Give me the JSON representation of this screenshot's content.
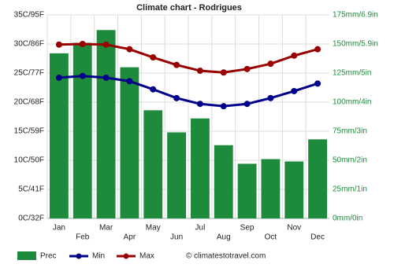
{
  "chart_data": {
    "type": "bar-line",
    "title": "Climate chart - Rodrigues",
    "categories": [
      "Jan",
      "Feb",
      "Mar",
      "Apr",
      "May",
      "Jun",
      "Jul",
      "Aug",
      "Sep",
      "Oct",
      "Nov",
      "Dec"
    ],
    "series": [
      {
        "name": "Prec",
        "color": "#1e8a3c",
        "axis": "y2",
        "kind": "bar",
        "values": [
          142,
          151,
          162,
          130,
          93,
          74,
          86,
          63,
          47,
          51,
          49,
          68
        ]
      },
      {
        "name": "Min",
        "color": "#00008b",
        "kind": "line",
        "values": [
          24.2,
          24.5,
          24.2,
          23.6,
          22.2,
          20.7,
          19.7,
          19.3,
          19.7,
          20.7,
          21.9,
          23.2
        ]
      },
      {
        "name": "Max",
        "color": "#990000",
        "kind": "line",
        "values": [
          29.9,
          30.0,
          29.9,
          29.1,
          27.7,
          26.4,
          25.4,
          25.1,
          25.7,
          26.6,
          28.0,
          29.1
        ]
      }
    ],
    "ylim": [
      0,
      35
    ],
    "yticks": [
      {
        "value": 0,
        "label": "0C/32F"
      },
      {
        "value": 5,
        "label": "5C/41F"
      },
      {
        "value": 10,
        "label": "10C/50F"
      },
      {
        "value": 15,
        "label": "15C/59F"
      },
      {
        "value": 20,
        "label": "20C/68F"
      },
      {
        "value": 25,
        "label": "25C/77F"
      },
      {
        "value": 30,
        "label": "30C/86F"
      },
      {
        "value": 35,
        "label": "35C/95F"
      }
    ],
    "y2lim": [
      0,
      175
    ],
    "y2ticks": [
      {
        "value": 0,
        "label": "0mm/0in"
      },
      {
        "value": 25,
        "label": "25mm/1in"
      },
      {
        "value": 50,
        "label": "50mm/2in"
      },
      {
        "value": 75,
        "label": "75mm/3in"
      },
      {
        "value": 100,
        "label": "100mm/4in"
      },
      {
        "value": 125,
        "label": "125mm/5in"
      },
      {
        "value": 150,
        "label": "150mm/5.9in"
      },
      {
        "value": 175,
        "label": "175mm/6.9in"
      }
    ],
    "grid": true,
    "credit": "© climatestotravel.com"
  }
}
